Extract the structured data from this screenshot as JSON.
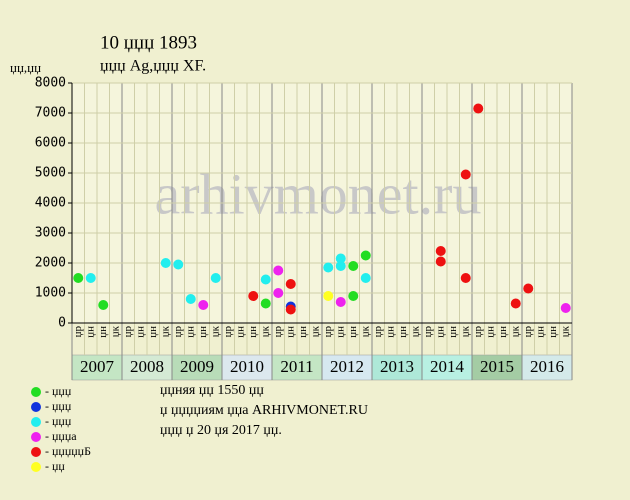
{
  "chart_data": {
    "type": "scatter",
    "title": "10 џџџ 1893",
    "subtitle": "џџџ Ag,џџџ XF.",
    "y_label": "џџ,џџ",
    "watermark": "arhivmonet.ru",
    "ylim": [
      0,
      8000
    ],
    "yticks": [
      0,
      1000,
      2000,
      3000,
      4000,
      5000,
      6000,
      7000,
      8000
    ],
    "grid": true,
    "categories": [
      "џр",
      "џн",
      "џн",
      "џк",
      "џр",
      "џн",
      "џн",
      "џк",
      "џр",
      "џн",
      "џн",
      "џк",
      "џр",
      "џн",
      "џн",
      "џк",
      "џр",
      "џн",
      "џн",
      "џк",
      "џр",
      "џн",
      "џн",
      "џк",
      "џр",
      "џн",
      "џн",
      "џк",
      "џр",
      "џн",
      "џн",
      "џк",
      "џр",
      "џн",
      "џн",
      "џк",
      "џр",
      "џн",
      "џн",
      "џк"
    ],
    "years": [
      "2007",
      "2008",
      "2009",
      "2010",
      "2011",
      "2012",
      "2013",
      "2014",
      "2015",
      "2016"
    ],
    "year_colors": [
      "#c4e6c4",
      "#d4ead4",
      "#b8dcb8",
      "#dce8ee",
      "#c4e6c4",
      "#d6e8f0",
      "#aee8d8",
      "#b8f0e2",
      "#a4cca4",
      "#d4eaea"
    ],
    "series": [
      {
        "name": "- џџџ",
        "color": "#22dd22",
        "x": [
          0,
          2,
          15,
          22,
          22,
          23
        ],
        "values": [
          1500,
          600,
          650,
          900,
          1900,
          2250
        ]
      },
      {
        "name": "- џџџ",
        "color": "#1133dd",
        "x": [
          17
        ],
        "values": [
          550
        ]
      },
      {
        "name": "- џџџ",
        "color": "#22eeee",
        "x": [
          1,
          7,
          8,
          9,
          11,
          15,
          20,
          21,
          21,
          23
        ],
        "values": [
          1500,
          2000,
          1950,
          800,
          1500,
          1450,
          1850,
          1900,
          2150,
          1500
        ]
      },
      {
        "name": "- џџџа",
        "color": "#ee22ee",
        "x": [
          10,
          16,
          16,
          21,
          39
        ],
        "values": [
          600,
          1000,
          1750,
          700,
          500
        ]
      },
      {
        "name": "- џџџџџБ",
        "color": "#ee1111",
        "x": [
          14,
          17,
          17,
          29,
          29,
          31,
          31,
          32,
          35,
          36
        ],
        "values": [
          900,
          1300,
          450,
          2050,
          2400,
          4950,
          1500,
          7150,
          650,
          1150
        ]
      },
      {
        "name": "- џџ",
        "color": "#ffff22",
        "x": [
          20
        ],
        "values": [
          900
        ]
      }
    ],
    "notes": [
      "џџняя џџ 1550 џџ",
      "џ џџџџиям џџа ARHIVMONET.RU",
      "џџџ џ 20 џя 2017 џџ."
    ]
  }
}
